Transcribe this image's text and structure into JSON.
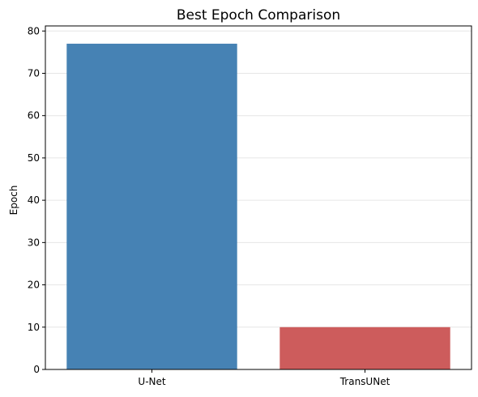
{
  "chart_data": {
    "type": "bar",
    "title": "Best Epoch Comparison",
    "xlabel": "",
    "ylabel": "Epoch",
    "categories": [
      "U-Net",
      "TransUNet"
    ],
    "values": [
      77,
      10
    ],
    "colors": [
      "#4682b4",
      "#cd5c5c"
    ],
    "ylim": [
      0,
      81.2
    ],
    "yticks": [
      0,
      10,
      20,
      30,
      40,
      50,
      60,
      70,
      80
    ],
    "grid": "y",
    "legend": "none"
  }
}
